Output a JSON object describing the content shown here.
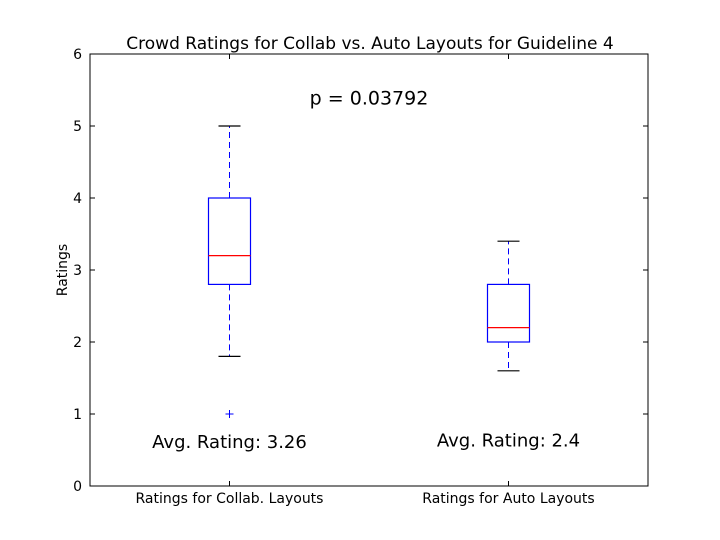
{
  "chart_data": {
    "type": "box",
    "title": "Crowd Ratings for Collab vs. Auto Layouts for Guideline 4",
    "xlabel": "",
    "ylabel": "Ratings",
    "ylim": [
      0,
      6
    ],
    "yticks": [
      "0",
      "1",
      "2",
      "3",
      "4",
      "5",
      "6"
    ],
    "categories": [
      "Ratings for Collab. Layouts",
      "Ratings for Auto Layouts"
    ],
    "boxes": [
      {
        "category": "Ratings for Collab. Layouts",
        "whisker_low": 1.8,
        "q1": 2.8,
        "median": 3.2,
        "q3": 4.0,
        "whisker_high": 5.0,
        "outliers": [
          1.0
        ]
      },
      {
        "category": "Ratings for Auto Layouts",
        "whisker_low": 1.6,
        "q1": 2.0,
        "median": 2.2,
        "q3": 2.8,
        "whisker_high": 3.4,
        "outliers": []
      }
    ],
    "annotations": [
      {
        "text": "p = 0.03792",
        "x": 1.5,
        "y": 5.3
      },
      {
        "text": "Avg. Rating: 3.26",
        "x": 1,
        "y": 0.53
      },
      {
        "text": "Avg. Rating: 2.4",
        "x": 2,
        "y": 0.55
      }
    ],
    "grid": false,
    "colors": {
      "box": "#0000ff",
      "median": "#ff0000",
      "cap": "#000000",
      "outlier": "#0000ff"
    }
  }
}
